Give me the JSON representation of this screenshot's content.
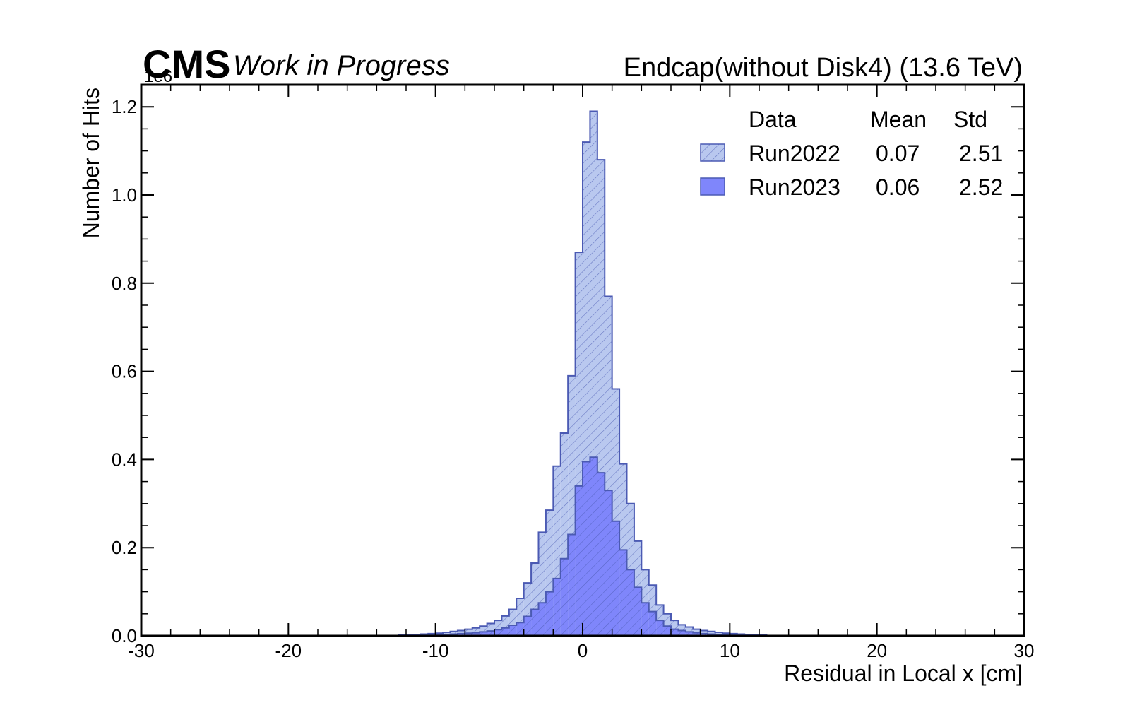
{
  "chart_data": {
    "type": "histogram",
    "experiment_label": "CMS",
    "status_label": "Work in Progress",
    "title_right": "Endcap(without Disk4) (13.6 TeV)",
    "xlabel": "Residual in Local x [cm]",
    "ylabel": "Number of Hits",
    "y_scale_label": "1e6",
    "xlim": [
      -30,
      30
    ],
    "ylim": [
      0,
      1.25
    ],
    "bin_width": 0.5,
    "x_ticks": [
      -30,
      -20,
      -10,
      0,
      10,
      20,
      30
    ],
    "x_tick_labels": [
      "-30",
      "-20",
      "-10",
      "0",
      "10",
      "20",
      "30"
    ],
    "y_ticks": [
      0.0,
      0.2,
      0.4,
      0.6,
      0.8,
      1.0,
      1.2
    ],
    "y_tick_labels": [
      "0.0",
      "0.2",
      "0.4",
      "0.6",
      "0.8",
      "1.0",
      "1.2"
    ],
    "legend": {
      "placement": "top-right",
      "headers": {
        "data": "Data",
        "mean": "Mean",
        "std": "Std"
      },
      "entries": [
        {
          "name": "Run2022",
          "mean": "0.07",
          "std": "2.51"
        },
        {
          "name": "Run2023",
          "mean": "0.06",
          "std": "2.52"
        }
      ]
    },
    "series": [
      {
        "name": "Run2022",
        "style": "hatched",
        "fill_color": "#b9c8ef",
        "edge_color": "#4b5ab3",
        "bin_centers": [
          -12.25,
          -11.75,
          -11.25,
          -10.75,
          -10.25,
          -9.75,
          -9.25,
          -8.75,
          -8.25,
          -7.75,
          -7.25,
          -6.75,
          -6.25,
          -5.75,
          -5.25,
          -4.75,
          -4.25,
          -3.75,
          -3.25,
          -2.75,
          -2.25,
          -1.75,
          -1.25,
          -0.75,
          -0.25,
          0.25,
          0.75,
          1.25,
          1.75,
          2.25,
          2.75,
          3.25,
          3.75,
          4.25,
          4.75,
          5.25,
          5.75,
          6.25,
          6.75,
          7.25,
          7.75,
          8.25,
          8.75,
          9.25,
          9.75,
          10.25,
          10.75,
          11.25,
          11.75,
          12.25
        ],
        "values": [
          0.002,
          0.002,
          0.003,
          0.004,
          0.005,
          0.006,
          0.008,
          0.01,
          0.012,
          0.015,
          0.018,
          0.022,
          0.028,
          0.035,
          0.045,
          0.06,
          0.085,
          0.12,
          0.165,
          0.235,
          0.285,
          0.385,
          0.46,
          0.59,
          0.87,
          1.12,
          1.19,
          1.08,
          0.77,
          0.56,
          0.39,
          0.3,
          0.215,
          0.15,
          0.115,
          0.07,
          0.05,
          0.035,
          0.025,
          0.02,
          0.015,
          0.012,
          0.01,
          0.008,
          0.006,
          0.005,
          0.004,
          0.003,
          0.002,
          0.002
        ]
      },
      {
        "name": "Run2023",
        "style": "solid",
        "fill_color": "#7f86fb",
        "edge_color": "#4b5ab3",
        "bin_centers": [
          -12.25,
          -11.75,
          -11.25,
          -10.75,
          -10.25,
          -9.75,
          -9.25,
          -8.75,
          -8.25,
          -7.75,
          -7.25,
          -6.75,
          -6.25,
          -5.75,
          -5.25,
          -4.75,
          -4.25,
          -3.75,
          -3.25,
          -2.75,
          -2.25,
          -1.75,
          -1.25,
          -0.75,
          -0.25,
          0.25,
          0.75,
          1.25,
          1.75,
          2.25,
          2.75,
          3.25,
          3.75,
          4.25,
          4.75,
          5.25,
          5.75,
          6.25,
          6.75,
          7.25,
          7.75,
          8.25,
          8.75,
          9.25,
          9.75,
          10.25,
          10.75,
          11.25,
          11.75,
          12.25
        ],
        "values": [
          0.001,
          0.001,
          0.001,
          0.002,
          0.002,
          0.003,
          0.003,
          0.004,
          0.005,
          0.006,
          0.007,
          0.009,
          0.011,
          0.014,
          0.018,
          0.024,
          0.03,
          0.044,
          0.06,
          0.075,
          0.1,
          0.13,
          0.175,
          0.23,
          0.34,
          0.395,
          0.405,
          0.37,
          0.33,
          0.26,
          0.195,
          0.15,
          0.11,
          0.075,
          0.055,
          0.035,
          0.022,
          0.015,
          0.012,
          0.009,
          0.007,
          0.005,
          0.004,
          0.003,
          0.002,
          0.002,
          0.001,
          0.001,
          0.001,
          0.001
        ]
      }
    ]
  }
}
